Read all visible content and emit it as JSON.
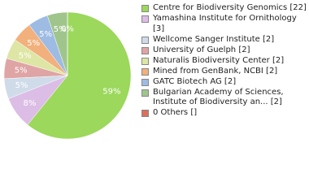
{
  "chart_data": {
    "type": "pie",
    "categories": [
      "Centre for Biodiversity Genomics [22]",
      "Yamashina Institute for Ornithology [3]",
      "Wellcome Sanger Institute [2]",
      "University of Guelph [2]",
      "Naturalis Biodiversity Center [2]",
      "Mined from GenBank, NCBI [2]",
      "GATC Biotech AG [2]",
      "Bulgarian Academy of Sciences, Institute of Biodiversity an... [2]",
      "0 Others []"
    ],
    "values": [
      59,
      8,
      5,
      5,
      5,
      5,
      5,
      5,
      0
    ],
    "value_labels": [
      "59%",
      "8%",
      "5%",
      "5%",
      "5%",
      "5%",
      "5%",
      "5%",
      "0%"
    ],
    "colors": [
      "#9bd85b",
      "#dcbde6",
      "#cfdbe9",
      "#dfa4a4",
      "#dde6a4",
      "#f2b07c",
      "#9dbbe3",
      "#a0c58c",
      "#d9715d"
    ]
  }
}
